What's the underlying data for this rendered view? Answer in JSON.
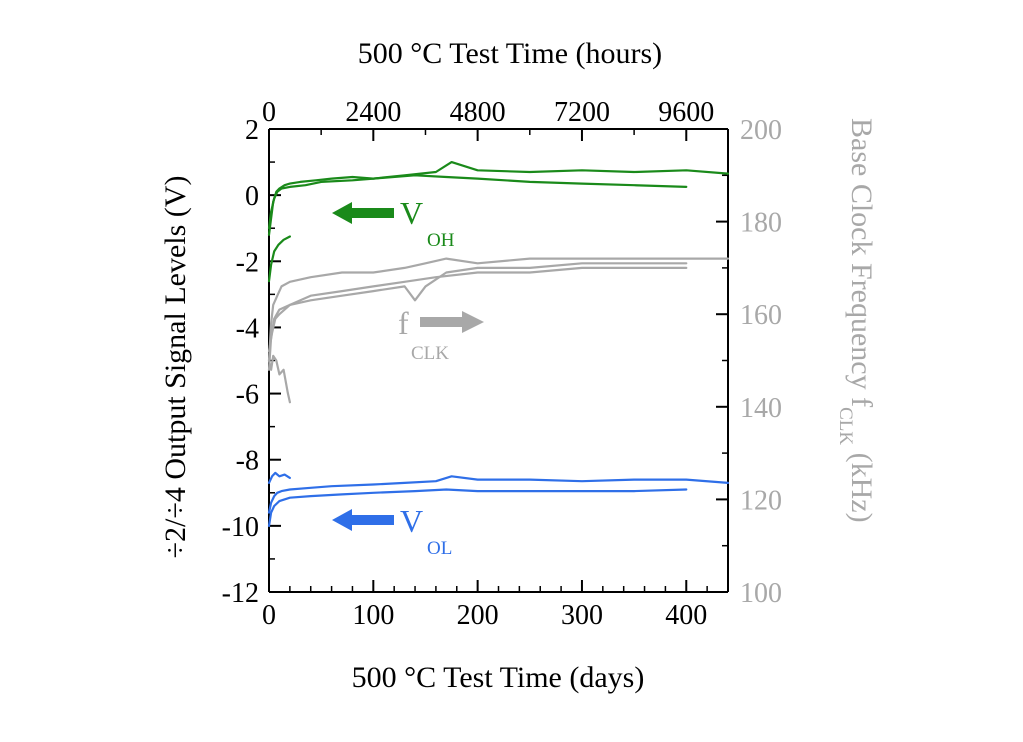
{
  "chart_data": {
    "type": "line",
    "top_axis_title": "500 °C Test Time (hours)",
    "bottom_axis_title": "500 °C Test Time (days)",
    "left_axis_title": "÷2/÷4 Output Signal Levels (V)",
    "right_axis_title_main": "Base Clock Frequency f",
    "right_axis_title_sub": "CLK",
    "right_axis_title_tail": " (kHz)",
    "x_days": {
      "lim": [
        0,
        440
      ],
      "ticks": [
        0,
        100,
        200,
        300,
        400
      ],
      "labels": [
        "0",
        "100",
        "200",
        "300",
        "400"
      ]
    },
    "x_hours": {
      "ticks": [
        0,
        2400,
        4800,
        7200,
        9600
      ],
      "labels": [
        "0",
        "2400",
        "4800",
        "7200",
        "9600"
      ]
    },
    "y_left": {
      "lim": [
        -12,
        2
      ],
      "ticks": [
        2,
        0,
        -2,
        -4,
        -6,
        -8,
        -10,
        -12
      ],
      "labels": [
        "2",
        "0",
        "-2",
        "-4",
        "-6",
        "-8",
        "-10",
        "-12"
      ]
    },
    "y_right": {
      "lim": [
        100,
        200
      ],
      "ticks": [
        200,
        180,
        160,
        140,
        120,
        100
      ],
      "labels": [
        "200",
        "180",
        "160",
        "140",
        "120",
        "100"
      ]
    },
    "annotations": {
      "voh": {
        "main": "V",
        "sub": "OH"
      },
      "vol": {
        "main": "V",
        "sub": "OL"
      },
      "fclk": {
        "main": "f",
        "sub": "CLK"
      }
    },
    "colors": {
      "voh": "#1a8a1a",
      "vol": "#2f6fe8",
      "fclk": "#a8a8a8",
      "axis": "#000000",
      "right_axis": "#a8a8a8"
    },
    "series": [
      {
        "group": "voh",
        "axis": "left",
        "x": [
          0,
          2,
          4,
          7,
          10,
          15,
          20,
          30,
          45,
          60,
          80,
          100,
          130,
          160,
          175,
          200,
          250,
          300,
          350,
          400,
          440
        ],
        "y": [
          -1.2,
          -0.7,
          -0.2,
          0.1,
          0.2,
          0.3,
          0.35,
          0.4,
          0.45,
          0.5,
          0.55,
          0.5,
          0.6,
          0.7,
          1.0,
          0.75,
          0.7,
          0.75,
          0.7,
          0.75,
          0.65
        ]
      },
      {
        "group": "voh",
        "axis": "left",
        "x": [
          0,
          2,
          5,
          8,
          12,
          20,
          35,
          50,
          80,
          100,
          140,
          170,
          200,
          250,
          300,
          350,
          400
        ],
        "y": [
          -1.0,
          -0.5,
          -0.1,
          0.1,
          0.2,
          0.25,
          0.3,
          0.4,
          0.45,
          0.5,
          0.6,
          0.55,
          0.5,
          0.4,
          0.35,
          0.3,
          0.25
        ]
      },
      {
        "group": "voh",
        "axis": "left",
        "x": [
          0,
          2,
          5,
          9,
          14,
          20
        ],
        "y": [
          -2.6,
          -2.1,
          -1.7,
          -1.5,
          -1.35,
          -1.25
        ]
      },
      {
        "group": "fclk",
        "axis": "right",
        "x": [
          0,
          2,
          4,
          8,
          12,
          20,
          40,
          70,
          100,
          130,
          150,
          170,
          200,
          250,
          300,
          350,
          400,
          440
        ],
        "y": [
          150,
          158,
          162,
          164,
          166,
          167,
          168,
          169,
          169,
          170,
          171,
          172,
          171,
          172,
          172,
          172,
          172,
          172
        ]
      },
      {
        "group": "fclk",
        "axis": "right",
        "x": [
          0,
          2,
          5,
          10,
          20,
          40,
          70,
          100,
          130,
          140,
          150,
          170,
          200,
          250,
          300,
          350,
          400
        ],
        "y": [
          148,
          155,
          159,
          161,
          162,
          163,
          164,
          165,
          166,
          163,
          166,
          169,
          170,
          170,
          171,
          171,
          171
        ]
      },
      {
        "group": "fclk",
        "axis": "right",
        "x": [
          0,
          3,
          6,
          10,
          20,
          40,
          70,
          100,
          130,
          160,
          200,
          250,
          300,
          350,
          400
        ],
        "y": [
          152,
          156,
          159,
          160,
          162,
          164,
          165,
          166,
          167,
          168,
          169,
          169,
          170,
          170,
          170
        ]
      },
      {
        "group": "fclk",
        "axis": "right",
        "x": [
          0,
          2,
          4,
          7,
          10,
          14,
          18,
          20
        ],
        "y": [
          150,
          148,
          151,
          150,
          147,
          148,
          143,
          141
        ]
      },
      {
        "group": "vol",
        "axis": "left",
        "x": [
          0,
          2,
          5,
          8,
          12,
          20,
          40,
          60,
          100,
          130,
          160,
          175,
          200,
          250,
          300,
          350,
          400,
          440
        ],
        "y": [
          -9.6,
          -9.3,
          -9.1,
          -9.0,
          -8.95,
          -8.9,
          -8.85,
          -8.8,
          -8.75,
          -8.7,
          -8.65,
          -8.5,
          -8.6,
          -8.6,
          -8.65,
          -8.6,
          -8.6,
          -8.7
        ]
      },
      {
        "group": "vol",
        "axis": "left",
        "x": [
          0,
          2,
          5,
          10,
          20,
          40,
          70,
          100,
          140,
          170,
          200,
          250,
          300,
          350,
          400
        ],
        "y": [
          -10.0,
          -9.6,
          -9.4,
          -9.25,
          -9.15,
          -9.1,
          -9.05,
          -9.0,
          -8.95,
          -8.9,
          -8.95,
          -8.95,
          -8.95,
          -8.95,
          -8.9
        ]
      },
      {
        "group": "vol",
        "axis": "left",
        "x": [
          0,
          3,
          6,
          10,
          15,
          20
        ],
        "y": [
          -8.7,
          -8.5,
          -8.4,
          -8.5,
          -8.45,
          -8.55
        ]
      }
    ]
  }
}
